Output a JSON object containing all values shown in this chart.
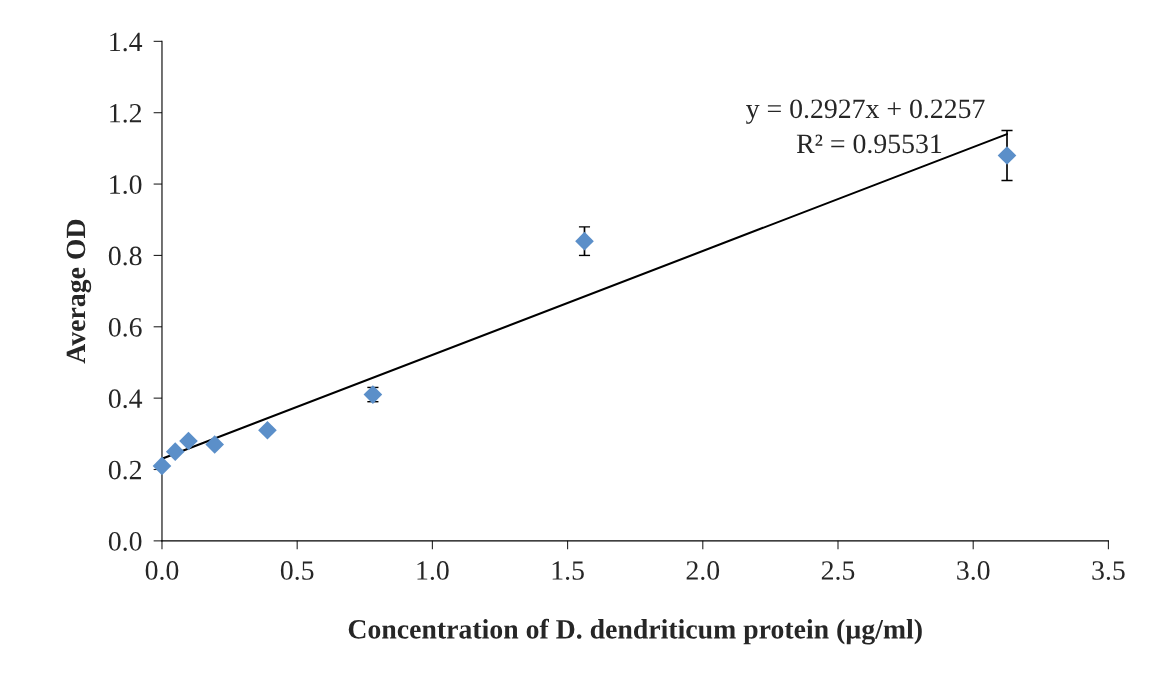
{
  "chart_data": {
    "type": "scatter",
    "xlabel": "Concentration of D. dendriticum protein (µg/ml)",
    "ylabel": "Average OD",
    "series": [
      {
        "color": "#5b8fc9",
        "marker": "diamond",
        "x": [
          0,
          0.049,
          0.098,
          0.195,
          0.39,
          0.78,
          1.5625,
          3.125
        ],
        "values": [
          0.21,
          0.25,
          0.28,
          0.27,
          0.31,
          0.41,
          0.84,
          1.08
        ],
        "errors": [
          null,
          null,
          null,
          null,
          null,
          0.02,
          0.04,
          0.07
        ]
      },
      {
        "type": "line",
        "color": "#000000",
        "marker": "none",
        "line_style": "solid",
        "x": [
          0,
          3.125
        ],
        "values": [
          0.23,
          1.14
        ]
      }
    ],
    "annotations": [
      "y = 0.2927x + 0.2257",
      "R² = 0.95531"
    ],
    "xlim": [
      0,
      3.5
    ],
    "ylim": [
      0,
      1.4
    ],
    "xticks": [
      {
        "value": 0,
        "label": "0.0"
      },
      0.5,
      {
        "value": 1,
        "label": "1.0"
      },
      1.5,
      {
        "value": 2,
        "label": "2.0"
      },
      2.5,
      {
        "value": 3,
        "label": "3.0"
      },
      3.5
    ],
    "yticks": [
      {
        "value": 0,
        "label": "0.0"
      },
      0.2,
      0.4,
      0.6,
      0.8,
      {
        "value": 1,
        "label": "1.0"
      },
      1.2,
      1.4
    ],
    "grid": false,
    "legend": false
  }
}
